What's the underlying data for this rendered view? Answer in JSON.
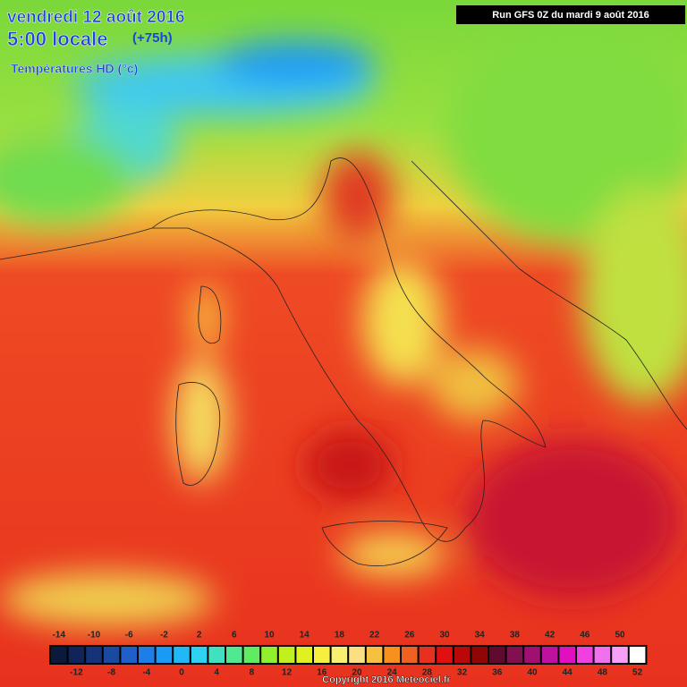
{
  "header": {
    "date": "vendredi 12 août 2016",
    "time": "5:00 locale",
    "lead": "(+75h)",
    "field": "Températures HD (°c)",
    "run": "Run GFS 0Z du mardi 9 août 2016"
  },
  "legend": {
    "steps": [
      {
        "label": -14,
        "color": "#0a1a3a"
      },
      {
        "label": -12,
        "color": "#10245a"
      },
      {
        "label": -10,
        "color": "#16337a"
      },
      {
        "label": -8,
        "color": "#1a4aa0"
      },
      {
        "label": -6,
        "color": "#1e60c8"
      },
      {
        "label": -4,
        "color": "#1e7ee8"
      },
      {
        "label": -2,
        "color": "#1a9af5"
      },
      {
        "label": 0,
        "color": "#20b8f5"
      },
      {
        "label": 2,
        "color": "#30d0f0"
      },
      {
        "label": 4,
        "color": "#40e0c0"
      },
      {
        "label": 6,
        "color": "#50e890"
      },
      {
        "label": 8,
        "color": "#60ec60"
      },
      {
        "label": 10,
        "color": "#90f030"
      },
      {
        "label": 12,
        "color": "#c0f020"
      },
      {
        "label": 14,
        "color": "#e0f020"
      },
      {
        "label": 16,
        "color": "#f5f040"
      },
      {
        "label": 18,
        "color": "#faf070"
      },
      {
        "label": 20,
        "color": "#fae080"
      },
      {
        "label": 22,
        "color": "#f8c040"
      },
      {
        "label": 24,
        "color": "#f89020"
      },
      {
        "label": 26,
        "color": "#f06020"
      },
      {
        "label": 28,
        "color": "#e83020"
      },
      {
        "label": 30,
        "color": "#e01010"
      },
      {
        "label": 32,
        "color": "#b80808"
      },
      {
        "label": 34,
        "color": "#900606"
      },
      {
        "label": 36,
        "color": "#600a30"
      },
      {
        "label": 38,
        "color": "#801050"
      },
      {
        "label": 40,
        "color": "#a01070"
      },
      {
        "label": 42,
        "color": "#c010a0"
      },
      {
        "label": 44,
        "color": "#e010c0"
      },
      {
        "label": 46,
        "color": "#f040e0"
      },
      {
        "label": 48,
        "color": "#f070f0"
      },
      {
        "label": 50,
        "color": "#f8a0f8"
      },
      {
        "label": 52,
        "color": "#ffffff"
      }
    ]
  },
  "footer": {
    "copyright": "Copyright 2016 Meteociel.fr"
  }
}
